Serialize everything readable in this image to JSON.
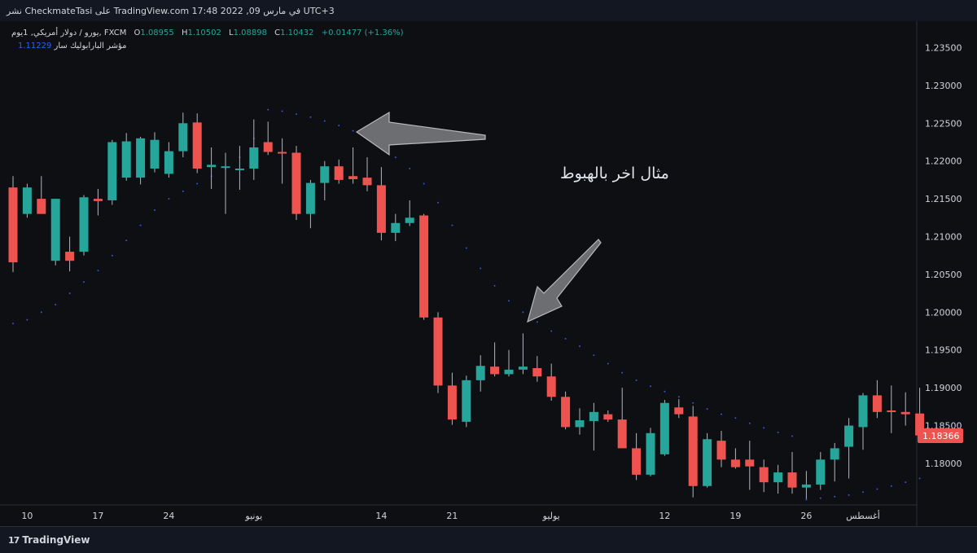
{
  "header": {
    "publish_text": "نشر CheckmateTasi على TradingView.com 17:48 2022 ,09 في مارس UTC+3"
  },
  "legend": {
    "symbol": "يورو / دولار أمريكي, 1يوم, FXCM",
    "open_label": "O",
    "open": "1.08955",
    "high_label": "H",
    "high": "1.10502",
    "low_label": "L",
    "low": "1.08898",
    "close_label": "C",
    "close": "1.10432",
    "change": "+0.01477 (+1.36%)",
    "indicator": "مؤشر البارابوليك سار",
    "indicator_value": "1.11229"
  },
  "annotation": {
    "text": "مثال اخر بالهبوط"
  },
  "footer": {
    "brand": "TradingView",
    "brand_icon": "tradingview-logo-icon"
  },
  "colors": {
    "up": "#26a69a",
    "down": "#ef5350",
    "sar": "#3f51d6",
    "price_label_bg": "#ef5350",
    "arrow": "#6d6e72"
  },
  "chart_data": {
    "type": "candlestick",
    "instrument": "EUR/USD (يورو / دولار أمريكي)",
    "timeframe": "1D",
    "ylim": [
      1.1745,
      1.2385
    ],
    "y_ticks": [
      "1.23500",
      "1.23000",
      "1.22500",
      "1.22000",
      "1.21500",
      "1.21000",
      "1.20500",
      "1.20000",
      "1.19500",
      "1.19000",
      "1.18500",
      "1.18000"
    ],
    "current_price": "1.18366",
    "x_ticks": [
      {
        "index": 1,
        "label": "10"
      },
      {
        "index": 6,
        "label": "17"
      },
      {
        "index": 11,
        "label": "24"
      },
      {
        "index": 17,
        "label": "يونيو"
      },
      {
        "index": 26,
        "label": "14"
      },
      {
        "index": 31,
        "label": "21"
      },
      {
        "index": 38,
        "label": "يوليو"
      },
      {
        "index": 46,
        "label": "12"
      },
      {
        "index": 51,
        "label": "19"
      },
      {
        "index": 56,
        "label": "26"
      },
      {
        "index": 60,
        "label": "أغسطس"
      }
    ],
    "candles": [
      [
        1.2165,
        1.218,
        1.2053,
        1.2066
      ],
      [
        1.213,
        1.217,
        1.2125,
        1.2165
      ],
      [
        1.215,
        1.218,
        1.2132,
        1.213
      ],
      [
        1.2068,
        1.215,
        1.2062,
        1.215
      ],
      [
        1.208,
        1.21,
        1.2054,
        1.2068
      ],
      [
        1.208,
        1.2155,
        1.2075,
        1.2152
      ],
      [
        1.215,
        1.2163,
        1.2128,
        1.2147
      ],
      [
        1.2148,
        1.2228,
        1.2142,
        1.2225
      ],
      [
        1.2178,
        1.2237,
        1.2174,
        1.2226
      ],
      [
        1.2178,
        1.2232,
        1.2169,
        1.223
      ],
      [
        1.219,
        1.2238,
        1.2185,
        1.2228
      ],
      [
        1.2183,
        1.2225,
        1.2178,
        1.2213
      ],
      [
        1.2213,
        1.2264,
        1.2205,
        1.225
      ],
      [
        1.2251,
        1.2263,
        1.2184,
        1.219
      ],
      [
        1.2192,
        1.2218,
        1.2163,
        1.2195
      ],
      [
        1.2192,
        1.2211,
        1.213,
        1.2193
      ],
      [
        1.219,
        1.222,
        1.2162,
        1.219
      ],
      [
        1.219,
        1.2255,
        1.2175,
        1.2218
      ],
      [
        1.2225,
        1.2252,
        1.2208,
        1.2212
      ],
      [
        1.2212,
        1.223,
        1.217,
        1.221
      ],
      [
        1.2211,
        1.222,
        1.2122,
        1.213
      ],
      [
        1.213,
        1.2175,
        1.2111,
        1.2171
      ],
      [
        1.2171,
        1.22,
        1.2148,
        1.2193
      ],
      [
        1.2193,
        1.2202,
        1.217,
        1.2175
      ],
      [
        1.218,
        1.2218,
        1.217,
        1.2176
      ],
      [
        1.2178,
        1.2205,
        1.216,
        1.2168
      ],
      [
        1.2168,
        1.2192,
        1.2095,
        1.2105
      ],
      [
        1.2105,
        1.213,
        1.2094,
        1.2118
      ],
      [
        1.2118,
        1.2148,
        1.2114,
        1.2125
      ],
      [
        1.2128,
        1.213,
        1.199,
        1.1993
      ],
      [
        1.1993,
        1.2,
        1.1893,
        1.1903
      ],
      [
        1.1903,
        1.192,
        1.1851,
        1.1858
      ],
      [
        1.1855,
        1.1916,
        1.1848,
        1.191
      ],
      [
        1.191,
        1.1943,
        1.1895,
        1.1929
      ],
      [
        1.1928,
        1.196,
        1.1915,
        1.1918
      ],
      [
        1.1918,
        1.195,
        1.1915,
        1.1924
      ],
      [
        1.1924,
        1.1972,
        1.1918,
        1.1928
      ],
      [
        1.1926,
        1.1942,
        1.1908,
        1.1915
      ],
      [
        1.1915,
        1.1932,
        1.1883,
        1.1888
      ],
      [
        1.1888,
        1.1895,
        1.1845,
        1.1848
      ],
      [
        1.1848,
        1.1873,
        1.1838,
        1.1857
      ],
      [
        1.1856,
        1.188,
        1.1817,
        1.1868
      ],
      [
        1.1865,
        1.187,
        1.1855,
        1.1858
      ],
      [
        1.1858,
        1.19,
        1.182,
        1.182
      ],
      [
        1.182,
        1.184,
        1.1778,
        1.1785
      ],
      [
        1.1785,
        1.1847,
        1.1783,
        1.184
      ],
      [
        1.1812,
        1.1884,
        1.181,
        1.188
      ],
      [
        1.1874,
        1.1885,
        1.186,
        1.1865
      ],
      [
        1.1862,
        1.1876,
        1.1755,
        1.177
      ],
      [
        1.177,
        1.184,
        1.1768,
        1.1832
      ],
      [
        1.183,
        1.1843,
        1.1795,
        1.1805
      ],
      [
        1.1805,
        1.182,
        1.1793,
        1.1795
      ],
      [
        1.1805,
        1.183,
        1.1765,
        1.1796
      ],
      [
        1.1795,
        1.1805,
        1.1762,
        1.1775
      ],
      [
        1.1775,
        1.1798,
        1.176,
        1.1788
      ],
      [
        1.1788,
        1.1815,
        1.176,
        1.1768
      ],
      [
        1.1768,
        1.179,
        1.1753,
        1.1772
      ],
      [
        1.1772,
        1.1815,
        1.1765,
        1.1805
      ],
      [
        1.1805,
        1.1827,
        1.1776,
        1.182
      ],
      [
        1.1822,
        1.186,
        1.178,
        1.185
      ],
      [
        1.1848,
        1.1893,
        1.1818,
        1.189
      ],
      [
        1.189,
        1.191,
        1.186,
        1.1868
      ],
      [
        1.187,
        1.1903,
        1.184,
        1.1869
      ],
      [
        1.1868,
        1.1894,
        1.185,
        1.1865
      ],
      [
        1.1866,
        1.19,
        1.1828,
        1.1837
      ]
    ],
    "parabolic_sar": [
      [
        0,
        1.1985
      ],
      [
        1,
        1.199
      ],
      [
        2,
        1.2
      ],
      [
        3,
        1.201
      ],
      [
        4,
        1.2025
      ],
      [
        5,
        1.204
      ],
      [
        6,
        1.2055
      ],
      [
        7,
        1.2075
      ],
      [
        8,
        1.2095
      ],
      [
        9,
        1.2115
      ],
      [
        10,
        1.2135
      ],
      [
        11,
        1.215
      ],
      [
        12,
        1.216
      ],
      [
        13,
        1.217
      ],
      [
        14,
        1.218
      ],
      [
        15,
        1.219
      ],
      [
        16,
        1.2205
      ],
      [
        17,
        1.223
      ],
      [
        18,
        1.2268
      ],
      [
        19,
        1.2266
      ],
      [
        20,
        1.2262
      ],
      [
        21,
        1.2258
      ],
      [
        22,
        1.2253
      ],
      [
        23,
        1.2247
      ],
      [
        24,
        1.224
      ],
      [
        25,
        1.223
      ],
      [
        26,
        1.2218
      ],
      [
        27,
        1.2205
      ],
      [
        28,
        1.219
      ],
      [
        29,
        1.217
      ],
      [
        30,
        1.2145
      ],
      [
        31,
        1.2115
      ],
      [
        32,
        1.2085
      ],
      [
        33,
        1.2058
      ],
      [
        34,
        1.2035
      ],
      [
        35,
        1.2015
      ],
      [
        36,
        1.2
      ],
      [
        37,
        1.1987
      ],
      [
        38,
        1.1975
      ],
      [
        39,
        1.1965
      ],
      [
        40,
        1.1955
      ],
      [
        41,
        1.1943
      ],
      [
        42,
        1.1932
      ],
      [
        43,
        1.192
      ],
      [
        44,
        1.191
      ],
      [
        45,
        1.1902
      ],
      [
        46,
        1.1895
      ],
      [
        47,
        1.1888
      ],
      [
        48,
        1.188
      ],
      [
        49,
        1.1872
      ],
      [
        50,
        1.1865
      ],
      [
        51,
        1.186
      ],
      [
        52,
        1.1853
      ],
      [
        53,
        1.1847
      ],
      [
        54,
        1.1841
      ],
      [
        55,
        1.1836
      ],
      [
        56,
        1.1752
      ],
      [
        57,
        1.1754
      ],
      [
        58,
        1.1756
      ],
      [
        59,
        1.1758
      ],
      [
        60,
        1.1762
      ],
      [
        61,
        1.1766
      ],
      [
        62,
        1.177
      ],
      [
        63,
        1.1775
      ],
      [
        64,
        1.178
      ]
    ]
  }
}
